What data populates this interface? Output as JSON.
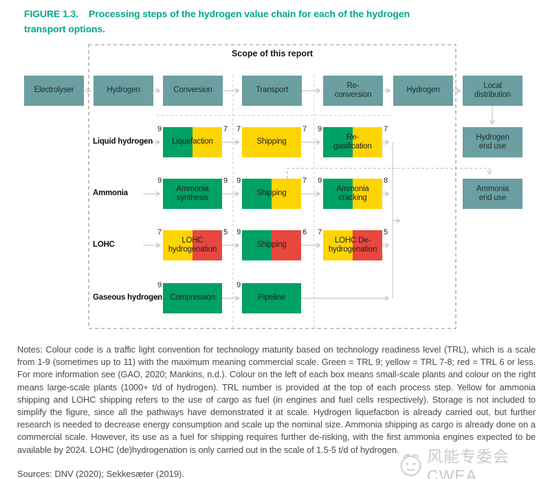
{
  "title": {
    "label": "FIGURE 1.3.",
    "line1": "Processing steps of the hydrogen value chain for each of the hydrogen",
    "line2": "transport options."
  },
  "scope_label": "Scope of this report",
  "chain": [
    "Electrolyser",
    "Hydrogen",
    "Conversion",
    "Transport",
    "Re-\nconversion",
    "Hydrogen",
    "Local\ndistribution"
  ],
  "end_use": [
    "Hydrogen\nend use",
    "Ammonia\nend use"
  ],
  "rows": [
    {
      "label": "Liquid hydrogen",
      "steps": [
        {
          "name": "Liquefaction",
          "col": 0,
          "trl_small": "9",
          "trl_large": "7",
          "color_small": "green",
          "color_large": "yellow"
        },
        {
          "name": "Shipping",
          "col": 1,
          "trl_small": "7",
          "trl_large": "7",
          "color_small": "yellow",
          "color_large": "yellow"
        },
        {
          "name": "Re-\ngasification",
          "col": 2,
          "trl_small": "9",
          "trl_large": "7",
          "color_small": "green",
          "color_large": "yellow"
        }
      ]
    },
    {
      "label": "Ammonia",
      "steps": [
        {
          "name": "Ammonia\nsynthesis",
          "col": 0,
          "trl_small": "9",
          "trl_large": "9",
          "color_small": "green",
          "color_large": "green"
        },
        {
          "name": "Shipping",
          "col": 1,
          "trl_small": "9",
          "trl_large": "7",
          "color_small": "green",
          "color_large": "yellow"
        },
        {
          "name": "Ammonia\ncracking",
          "col": 2,
          "trl_small": "9",
          "trl_large": "8",
          "color_small": "green",
          "color_large": "yellow"
        }
      ]
    },
    {
      "label": "LOHC",
      "steps": [
        {
          "name": "LOHC\nhydrogenation",
          "col": 0,
          "trl_small": "7",
          "trl_large": "5",
          "color_small": "yellow",
          "color_large": "red"
        },
        {
          "name": "Shipping",
          "col": 1,
          "trl_small": "9",
          "trl_large": "6",
          "color_small": "green",
          "color_large": "red"
        },
        {
          "name": "LOHC De-\nhydrogenation",
          "col": 2,
          "trl_small": "7",
          "trl_large": "5",
          "color_small": "yellow",
          "color_large": "red"
        }
      ]
    },
    {
      "label": "Gaseous hydrogen",
      "steps": [
        {
          "name": "Compression",
          "col": 0,
          "trl_small": "9",
          "trl_large": "",
          "color_small": "green",
          "color_large": "green"
        },
        {
          "name": "Pipeline",
          "col": 1,
          "trl_small": "9",
          "trl_large": "",
          "color_small": "green",
          "color_large": "green"
        }
      ]
    }
  ],
  "colors": {
    "green": "#00A165",
    "yellow": "#FFD403",
    "red": "#E8473E",
    "teal": "#6B9FA1",
    "title_teal": "#00A78A"
  },
  "notes": "Notes: Colour code is a traffic light convention for technology maturity based on technology readiness level (TRL), which is a scale from 1-9 (sometimes up to 11) with the maximum meaning commercial scale. Green = TRL 9; yellow = TRL 7-8; red = TRL 6 or less. For more information see (GAO, 2020; Mankins, n.d.). Colour on the left of each box means small-scale plants and colour on the right means large-scale plants (1000+ t/d of hydrogen). TRL number is provided at the top of each process step. Yellow for ammonia shipping and LOHC shipping refers to the use of cargo as fuel (in engines and fuel cells respectively). Storage is not included to simplify the figure, since all the pathways have demonstrated it at scale. Hydrogen liquefaction is already carried out, but further research is needed to decrease energy consumption and scale up the nominal size. Ammonia shipping as cargo is already done on a commercial scale. However, its use as a fuel for shipping requires further de-risking, with the first ammonia engines expected to be available by 2024. LOHC (de)hydrogenation is only carried out in the scale of 1.5-5 t/d of hydrogen.",
  "sources": "Sources: DNV (2020); Sekkesæter (2019).",
  "watermark": {
    "text": "风能专委会CWEA"
  }
}
